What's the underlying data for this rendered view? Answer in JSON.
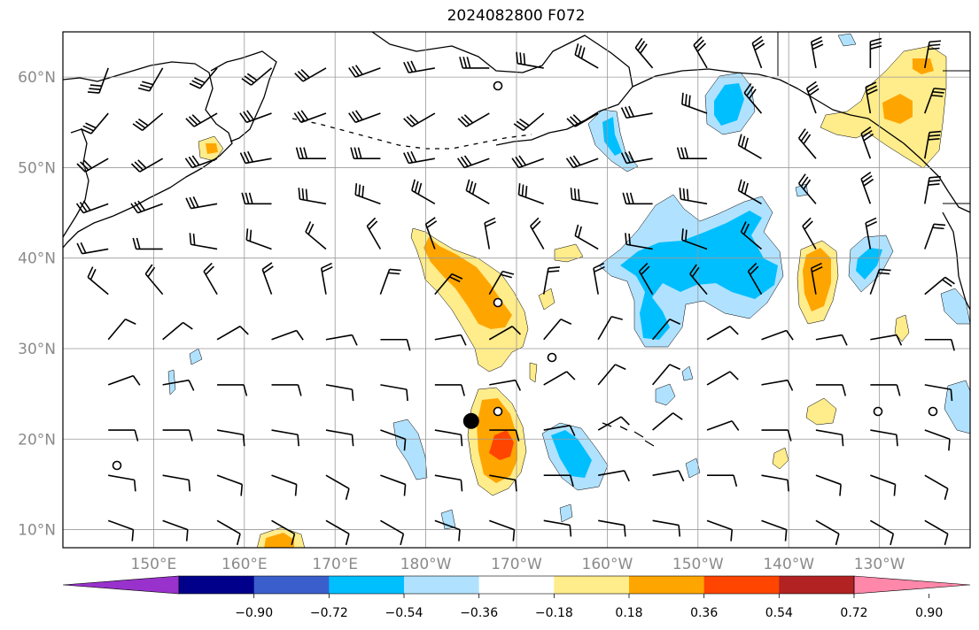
{
  "title": "2024082800 F072",
  "map": {
    "lon_range": [
      140,
      240
    ],
    "lat_range": [
      8,
      65
    ],
    "lat_labels": [
      "10°N",
      "20°N",
      "30°N",
      "40°N",
      "50°N",
      "60°N"
    ],
    "lon_labels": [
      "150°E",
      "160°E",
      "170°E",
      "180°W",
      "170°W",
      "160°W",
      "150°W",
      "140°W",
      "130°W"
    ],
    "marker": {
      "label": "",
      "lon": 185,
      "lat": 22
    }
  },
  "colorbar": {
    "ticks": [
      "−0.90",
      "−0.72",
      "−0.54",
      "−0.36",
      "−0.18",
      "0.18",
      "0.36",
      "0.54",
      "0.72",
      "0.90"
    ],
    "colors": [
      "#9932cc",
      "#00008b",
      "#3a5fcd",
      "#00bfff",
      "#b0e2ff",
      "#ffffff",
      "#ffec8b",
      "#ffa500",
      "#ff4500",
      "#b22222",
      "#ff88aa"
    ]
  },
  "fill_colors": {
    "pos1": "#ffec8b",
    "pos2": "#ffa500",
    "pos3": "#ff4500",
    "neg1": "#b0e2ff",
    "neg2": "#00bfff"
  }
}
